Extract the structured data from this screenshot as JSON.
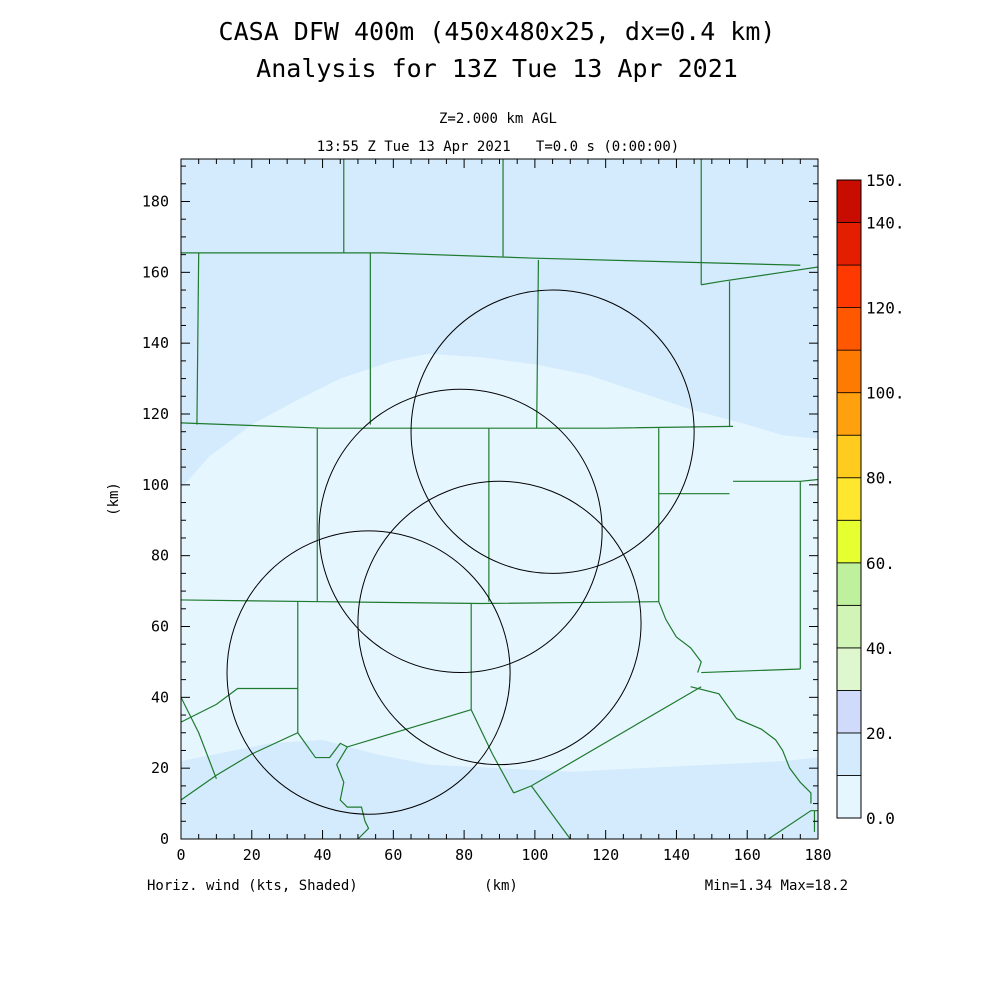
{
  "chart_data": {
    "type": "heatmap",
    "title": "CASA DFW 400m (450x480x25, dx=0.4 km)",
    "subtitle": "Analysis for 13Z Tue 13 Apr 2021",
    "level_label": "Z=2.000 km AGL",
    "time_label": "13:55 Z Tue 13 Apr 2021   T=0.0 s (0:00:00)",
    "xlabel": "(km)",
    "ylabel": "(km)",
    "xlim": [
      0,
      180
    ],
    "ylim": [
      0,
      192
    ],
    "x_ticks": [
      0,
      20,
      40,
      60,
      80,
      100,
      120,
      140,
      160,
      180
    ],
    "y_ticks": [
      0,
      20,
      40,
      60,
      80,
      100,
      120,
      140,
      160,
      180
    ],
    "field_label": "Horiz. wind (kts, Shaded)",
    "stats_label": "Min=1.34 Max=18.2",
    "colorbar": {
      "levels": [
        0,
        10,
        20,
        30,
        40,
        50,
        60,
        70,
        80,
        90,
        100,
        110,
        120,
        130,
        140,
        150
      ],
      "labels": [
        {
          "value": 0,
          "text": "0.0"
        },
        {
          "value": 20,
          "text": "20."
        },
        {
          "value": 40,
          "text": "40."
        },
        {
          "value": 60,
          "text": "60."
        },
        {
          "value": 80,
          "text": "80."
        },
        {
          "value": 100,
          "text": "100."
        },
        {
          "value": 120,
          "text": "120."
        },
        {
          "value": 140,
          "text": "140."
        },
        {
          "value": 150,
          "text": "150."
        }
      ],
      "colors": [
        "#e6f6ff",
        "#d4ebfd",
        "#d0dafa",
        "#dff7cf",
        "#d0f5b6",
        "#bff09e",
        "#e5ff30",
        "#ffe730",
        "#ffcb1e",
        "#ffa00e",
        "#ff7a00",
        "#ff5800",
        "#ff3a00",
        "#e41e00",
        "#c80c00"
      ]
    },
    "shading": {
      "low_color": "#e6f6ff",
      "high_color": "#d4ebfd",
      "north_region_boundary": [
        [
          0,
          99
        ],
        [
          8,
          108
        ],
        [
          20,
          117
        ],
        [
          33,
          124
        ],
        [
          45,
          130
        ],
        [
          60,
          135
        ],
        [
          70,
          137
        ],
        [
          85,
          136
        ],
        [
          100,
          134
        ],
        [
          115,
          131
        ],
        [
          130,
          126
        ],
        [
          145,
          121
        ],
        [
          160,
          117
        ],
        [
          170,
          114
        ],
        [
          180,
          113
        ]
      ],
      "south_region_boundary": [
        [
          0,
          22
        ],
        [
          10,
          24
        ],
        [
          25,
          27
        ],
        [
          40,
          28
        ],
        [
          55,
          24
        ],
        [
          70,
          21
        ],
        [
          90,
          20
        ],
        [
          110,
          19
        ],
        [
          130,
          20
        ],
        [
          150,
          21
        ],
        [
          170,
          22
        ],
        [
          180,
          23
        ]
      ]
    },
    "radar_rings": [
      {
        "cx": 53,
        "cy": 47,
        "r": 40
      },
      {
        "cx": 79,
        "cy": 87,
        "r": 40
      },
      {
        "cx": 105,
        "cy": 115,
        "r": 40
      },
      {
        "cx": 90,
        "cy": 61,
        "r": 40
      }
    ],
    "boundaries": [
      [
        [
          0,
          165.5
        ],
        [
          57,
          165.5
        ],
        [
          100,
          164
        ],
        [
          175,
          162
        ]
      ],
      [
        [
          5,
          165.5
        ],
        [
          4.5,
          117
        ]
      ],
      [
        [
          46,
          192
        ],
        [
          46,
          165.5
        ]
      ],
      [
        [
          53.5,
          165.5
        ],
        [
          53.5,
          117
        ]
      ],
      [
        [
          91,
          192
        ],
        [
          91,
          164.5
        ]
      ],
      [
        [
          101,
          163.5
        ],
        [
          100.5,
          116
        ]
      ],
      [
        [
          147,
          192
        ],
        [
          147,
          156.5
        ]
      ],
      [
        [
          147,
          156.5
        ],
        [
          153,
          157.5
        ],
        [
          170,
          160
        ],
        [
          180,
          161.5
        ]
      ],
      [
        [
          155,
          157.5
        ],
        [
          155,
          116.5
        ]
      ],
      [
        [
          0,
          117.5
        ],
        [
          40,
          116
        ],
        [
          80,
          116
        ],
        [
          120,
          116
        ],
        [
          156,
          116.5
        ]
      ],
      [
        [
          38.5,
          116
        ],
        [
          38.5,
          67
        ]
      ],
      [
        [
          87,
          116
        ],
        [
          87,
          67
        ]
      ],
      [
        [
          135,
          116
        ],
        [
          135,
          67
        ]
      ],
      [
        [
          135,
          97.5
        ],
        [
          155,
          97.5
        ]
      ],
      [
        [
          156,
          101
        ],
        [
          175,
          101
        ],
        [
          180,
          101.5
        ]
      ],
      [
        [
          175,
          101
        ],
        [
          175,
          48
        ]
      ],
      [
        [
          0,
          67.5
        ],
        [
          40,
          67
        ],
        [
          85,
          66.5
        ],
        [
          135,
          67
        ]
      ],
      [
        [
          33,
          67
        ],
        [
          33,
          30
        ]
      ],
      [
        [
          82,
          66.5
        ],
        [
          82,
          36.5
        ]
      ],
      [
        [
          0,
          33
        ],
        [
          10,
          38
        ],
        [
          16,
          42.5
        ],
        [
          33,
          42.5
        ]
      ],
      [
        [
          0,
          11
        ],
        [
          10,
          18
        ],
        [
          20,
          24
        ],
        [
          33,
          30
        ],
        [
          38,
          23
        ],
        [
          42,
          23
        ],
        [
          45,
          27
        ],
        [
          47,
          26
        ],
        [
          82,
          36.5
        ]
      ],
      [
        [
          0,
          40
        ],
        [
          5,
          30
        ],
        [
          10,
          17
        ]
      ],
      [
        [
          47,
          26
        ],
        [
          44,
          21
        ],
        [
          46,
          16
        ],
        [
          45,
          11
        ],
        [
          47,
          9
        ],
        [
          51,
          9
        ],
        [
          52,
          5
        ],
        [
          53,
          3
        ],
        [
          50,
          0
        ]
      ],
      [
        [
          82,
          36.5
        ],
        [
          88,
          24
        ],
        [
          94,
          13
        ]
      ],
      [
        [
          94,
          13
        ],
        [
          99,
          15
        ],
        [
          147,
          43
        ]
      ],
      [
        [
          99,
          15
        ],
        [
          110,
          0
        ]
      ],
      [
        [
          135,
          67
        ],
        [
          137,
          62
        ],
        [
          140,
          57
        ],
        [
          144,
          54
        ],
        [
          147,
          50
        ],
        [
          146,
          47
        ]
      ],
      [
        [
          147,
          47
        ],
        [
          175,
          48
        ]
      ],
      [
        [
          144,
          43
        ],
        [
          152,
          41
        ],
        [
          157,
          34
        ],
        [
          164,
          31
        ],
        [
          168,
          28
        ],
        [
          170,
          25
        ],
        [
          172,
          20
        ],
        [
          175,
          16
        ],
        [
          178,
          13
        ],
        [
          178,
          10
        ]
      ],
      [
        [
          166,
          0
        ],
        [
          178,
          8
        ],
        [
          180,
          8
        ]
      ],
      [
        [
          179,
          2
        ],
        [
          179,
          8
        ]
      ]
    ]
  }
}
